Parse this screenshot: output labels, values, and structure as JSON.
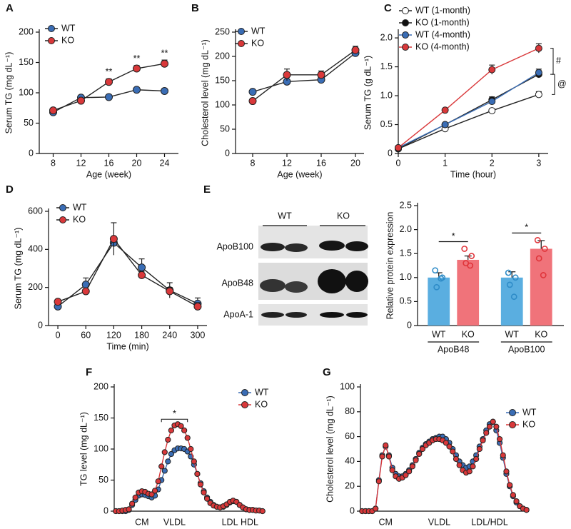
{
  "chart_data": [
    {
      "type": "line",
      "panel": "A",
      "xlabel": "Age (week)",
      "ylabel": "Serum TG (mg dL⁻¹)",
      "x": [
        8,
        12,
        16,
        20,
        24
      ],
      "xlim": [
        6,
        26
      ],
      "xticks": [
        8,
        12,
        16,
        20,
        24
      ],
      "ylim": [
        0,
        200
      ],
      "yticks": [
        0,
        50,
        100,
        150,
        200
      ],
      "legend": "upper left",
      "series": [
        {
          "name": "WT",
          "color": "#3a6db5",
          "line_color": "#222222",
          "values": [
            68,
            92,
            93,
            105,
            103
          ],
          "errors": [
            3,
            3,
            3,
            3,
            3
          ]
        },
        {
          "name": "KO",
          "color": "#d9383a",
          "line_color": "#222222",
          "values": [
            71,
            87,
            118,
            140,
            148
          ],
          "errors": [
            4,
            3,
            5,
            5,
            6
          ]
        }
      ],
      "significance": [
        null,
        null,
        "**",
        "**",
        "**"
      ]
    },
    {
      "type": "line",
      "panel": "B",
      "xlabel": "Age (week)",
      "ylabel": "Cholesterol level (mg dL⁻¹)",
      "x": [
        8,
        12,
        16,
        20
      ],
      "xlim": [
        6,
        21
      ],
      "xticks": [
        8,
        12,
        16,
        20
      ],
      "ylim": [
        0,
        250
      ],
      "yticks": [
        0,
        50,
        100,
        150,
        200,
        250
      ],
      "legend": "upper left",
      "series": [
        {
          "name": "WT",
          "color": "#3a6db5",
          "line_color": "#222222",
          "values": [
            127,
            148,
            152,
            207
          ],
          "errors": [
            5,
            5,
            5,
            6
          ]
        },
        {
          "name": "KO",
          "color": "#d9383a",
          "line_color": "#222222",
          "values": [
            108,
            162,
            162,
            213
          ],
          "errors": [
            5,
            12,
            8,
            8
          ]
        }
      ]
    },
    {
      "type": "line",
      "panel": "C",
      "xlabel": "Time (hour)",
      "ylabel": "Serum TG (g dL⁻¹)",
      "x": [
        0,
        1,
        2,
        3
      ],
      "xlim": [
        0,
        3.2
      ],
      "xticks": [
        0,
        1,
        2,
        3
      ],
      "ylim": [
        0,
        2.1
      ],
      "yticks": [
        0,
        0.5,
        {
          "value": 1,
          "label": "1.0"
        },
        1.5,
        {
          "value": 2,
          "label": "2.0"
        }
      ],
      "legend": "upper left",
      "series": [
        {
          "name": "WT (1-month)",
          "color": "#ffffff",
          "line_color": "#222222",
          "values": [
            0.08,
            0.43,
            0.74,
            1.02
          ],
          "errors": [
            0.02,
            0.02,
            0.03,
            0.05
          ]
        },
        {
          "name": "KO (1-month)",
          "color": "#111111",
          "line_color": "#222222",
          "values": [
            0.08,
            0.5,
            0.93,
            1.37
          ],
          "errors": [
            0.02,
            0.03,
            0.05,
            0.06
          ]
        },
        {
          "name": "WT (4-month)",
          "color": "#3a6db5",
          "line_color": "#3a6db5",
          "values": [
            0.1,
            0.5,
            0.9,
            1.4
          ],
          "errors": [
            0.02,
            0.03,
            0.05,
            0.06
          ]
        },
        {
          "name": "KO (4-month)",
          "color": "#d9383a",
          "line_color": "#d9383a",
          "values": [
            0.1,
            0.75,
            1.45,
            1.82
          ],
          "errors": [
            0.02,
            0.03,
            0.08,
            0.08
          ]
        }
      ],
      "annotations": [
        "#",
        "@"
      ]
    },
    {
      "type": "line",
      "panel": "D",
      "xlabel": "Time (min)",
      "ylabel": "Serum TG (mg dL⁻¹)",
      "x": [
        0,
        60,
        120,
        180,
        240,
        300
      ],
      "xlim": [
        -20,
        320
      ],
      "xticks": [
        0,
        60,
        120,
        180,
        240,
        300
      ],
      "ylim": [
        0,
        600
      ],
      "yticks": [
        0,
        200,
        400,
        600
      ],
      "legend": "upper left",
      "series": [
        {
          "name": "WT",
          "color": "#3a6db5",
          "line_color": "#222222",
          "values": [
            100,
            215,
            435,
            305,
            185,
            115
          ],
          "errors": [
            10,
            35,
            20,
            45,
            40,
            30
          ]
        },
        {
          "name": "KO",
          "color": "#d9383a",
          "line_color": "#222222",
          "values": [
            125,
            180,
            455,
            265,
            180,
            100
          ],
          "errors": [
            10,
            10,
            85,
            20,
            20,
            20
          ]
        }
      ]
    },
    {
      "type": "bar",
      "panel": "E",
      "ylabel": "Relative protein expression",
      "ylim": [
        0,
        2.5
      ],
      "yticks": [
        0,
        0.5,
        {
          "value": 1,
          "label": "1.0"
        },
        1.5,
        {
          "value": 2,
          "label": "2.0"
        },
        2.5
      ],
      "colors": [
        "#5aaee0",
        "#f0737a"
      ],
      "point_colors": [
        "#2f8cc8",
        "#e0353b"
      ],
      "groups": [
        {
          "name": "ApoB48",
          "categories": [
            "WT",
            "KO"
          ],
          "values": [
            1.0,
            1.37
          ],
          "errors": [
            0.1,
            0.08
          ],
          "points": [
            [
              1.15,
              1.0,
              0.8,
              0.98
            ],
            [
              1.6,
              1.45,
              1.3,
              1.25
            ]
          ]
        },
        {
          "name": "ApoB100",
          "categories": [
            "WT",
            "KO"
          ],
          "values": [
            1.0,
            1.6
          ],
          "errors": [
            0.12,
            0.17
          ],
          "points": [
            [
              1.1,
              1.0,
              0.85,
              0.6
            ],
            [
              1.78,
              1.6,
              1.4,
              1.05
            ]
          ]
        }
      ],
      "significance": [
        "*",
        "*"
      ]
    },
    {
      "type": "line",
      "panel": "F",
      "ylabel": "TG level (mg dL⁻¹)",
      "categories": [
        null,
        null,
        null,
        null,
        null,
        null,
        null,
        null,
        "CM",
        null,
        null,
        null,
        null,
        null,
        null,
        null,
        null,
        null,
        "VLDL",
        null,
        null,
        null,
        null,
        null,
        null,
        null,
        null,
        null,
        null,
        null,
        null,
        null,
        null,
        null,
        null,
        "LDL",
        null,
        null,
        null,
        null,
        null,
        "HDL",
        null,
        null,
        null,
        null
      ],
      "ylim": [
        0,
        200
      ],
      "yticks": [
        0,
        50,
        100,
        150,
        200
      ],
      "legend": "upper right",
      "series": [
        {
          "name": "WT",
          "color": "#3a6db5",
          "line_color": "#3a6db5",
          "values": [
            0,
            0,
            0,
            0,
            2,
            10,
            18,
            25,
            27,
            26,
            24,
            22,
            25,
            35,
            50,
            65,
            80,
            92,
            98,
            101,
            101,
            100,
            96,
            88,
            75,
            60,
            45,
            32,
            22,
            15,
            10,
            7,
            6,
            7,
            10,
            14,
            16,
            15,
            10,
            6,
            3,
            2,
            2,
            1,
            1,
            0
          ]
        },
        {
          "name": "KO",
          "color": "#d9383a",
          "line_color": "#d9383a",
          "values": [
            0,
            0,
            1,
            2,
            3,
            12,
            22,
            30,
            32,
            31,
            28,
            27,
            33,
            48,
            72,
            95,
            115,
            130,
            138,
            140,
            137,
            130,
            118,
            100,
            80,
            60,
            43,
            30,
            20,
            13,
            9,
            7,
            6,
            8,
            11,
            15,
            17,
            15,
            10,
            6,
            3,
            2,
            2,
            1,
            1,
            0
          ]
        }
      ],
      "annotations": [
        "*"
      ]
    },
    {
      "type": "line",
      "panel": "G",
      "ylabel": "Cholesterol level (mg dL⁻¹)",
      "categories": [
        null,
        null,
        null,
        null,
        null,
        null,
        null,
        "CM",
        null,
        null,
        null,
        null,
        null,
        null,
        null,
        null,
        null,
        null,
        null,
        null,
        null,
        null,
        null,
        "VLDL",
        null,
        null,
        null,
        null,
        null,
        null,
        null,
        null,
        null,
        null,
        null,
        null,
        null,
        null,
        "LDL/HDL",
        null,
        null,
        null,
        null,
        null,
        null,
        null,
        null,
        null,
        null,
        null
      ],
      "ylim": [
        0,
        100
      ],
      "yticks": [
        0,
        20,
        40,
        60,
        80,
        100
      ],
      "legend": "upper right",
      "series": [
        {
          "name": "WT",
          "color": "#3a6db5",
          "line_color": "#3a6db5",
          "values": [
            0,
            0,
            0,
            0,
            2,
            25,
            45,
            52,
            45,
            35,
            30,
            28,
            28,
            30,
            33,
            37,
            42,
            47,
            51,
            54,
            56,
            58,
            59,
            60,
            60,
            58,
            55,
            50,
            45,
            40,
            37,
            35,
            36,
            40,
            45,
            52,
            58,
            65,
            70,
            72,
            65,
            55,
            43,
            30,
            20,
            12,
            7,
            4,
            2,
            1
          ]
        },
        {
          "name": "KO",
          "color": "#d9383a",
          "line_color": "#d9383a",
          "values": [
            0,
            0,
            0,
            0,
            2,
            24,
            44,
            53,
            44,
            33,
            28,
            26,
            27,
            29,
            32,
            36,
            41,
            46,
            50,
            53,
            55,
            57,
            58,
            58,
            57,
            55,
            52,
            48,
            42,
            37,
            33,
            31,
            32,
            36,
            42,
            50,
            57,
            63,
            68,
            72,
            68,
            58,
            45,
            32,
            21,
            13,
            8,
            4,
            2,
            1
          ]
        }
      ]
    }
  ],
  "blot": {
    "groups": [
      "WT",
      "KO"
    ],
    "bands": [
      "ApoB100",
      "ApoB48",
      "ApoA-1"
    ]
  }
}
